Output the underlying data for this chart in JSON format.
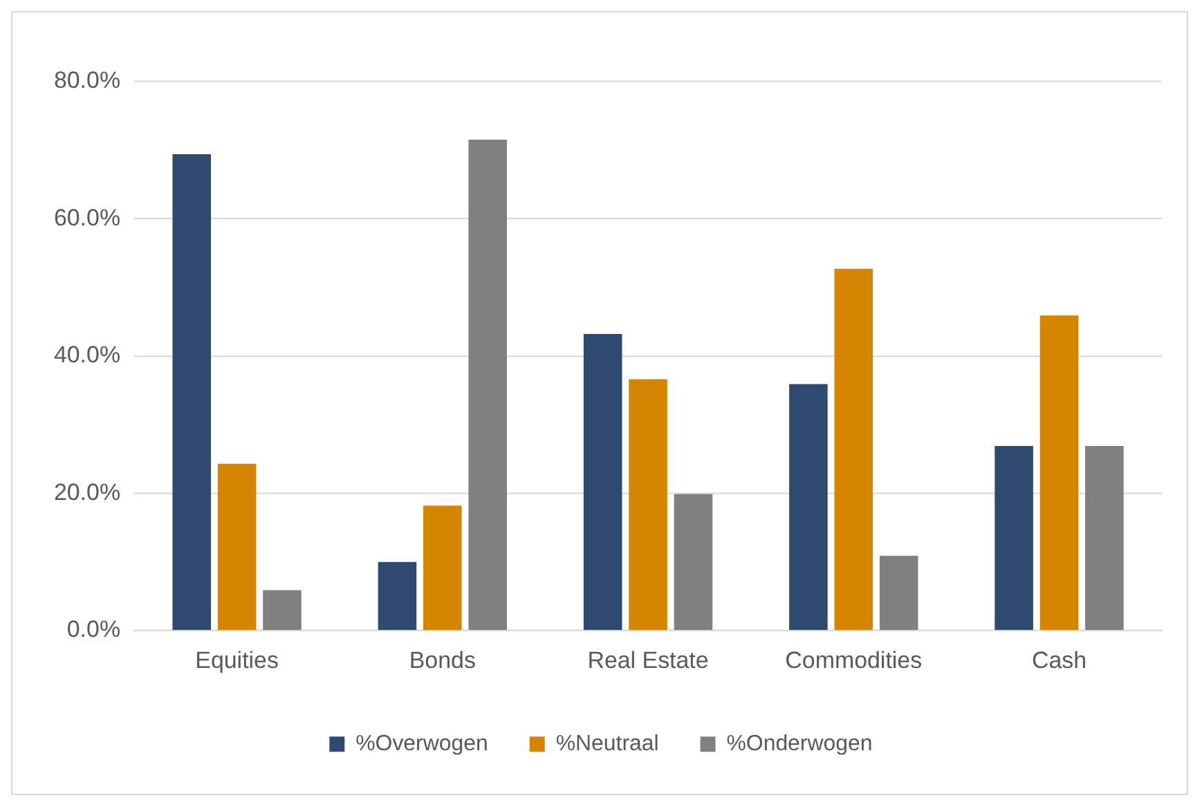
{
  "chart_data": {
    "type": "bar",
    "categories": [
      "Equities",
      "Bonds",
      "Real Estate",
      "Commodities",
      "Cash"
    ],
    "series": [
      {
        "name": "%Overwogen",
        "color": "#2e4a70",
        "values": [
          69.4,
          10.0,
          43.2,
          35.9,
          26.9
        ]
      },
      {
        "name": "%Neutraal",
        "color": "#d68500",
        "values": [
          24.3,
          18.2,
          36.6,
          52.7,
          45.9
        ]
      },
      {
        "name": "%Onderwogen",
        "color": "#808080",
        "values": [
          5.9,
          71.5,
          19.9,
          10.9,
          26.9
        ]
      }
    ],
    "ylim": [
      0,
      80
    ],
    "yticks": [
      {
        "value": 0,
        "label": "0.0%"
      },
      {
        "value": 20,
        "label": "20.0%"
      },
      {
        "value": 40,
        "label": "40.0%"
      },
      {
        "value": 60,
        "label": "60.0%"
      },
      {
        "value": 80,
        "label": "80.0%"
      }
    ],
    "grid": "y",
    "legend": "bottom"
  }
}
